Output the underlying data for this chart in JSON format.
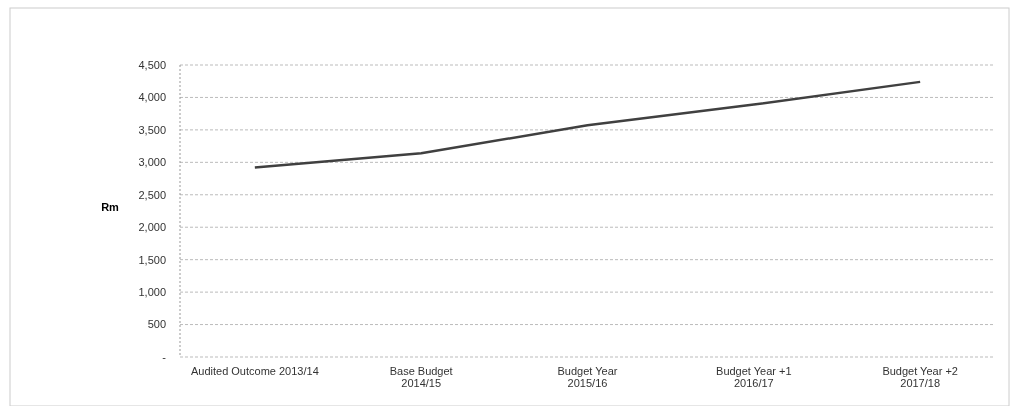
{
  "chart_data": {
    "type": "line",
    "ylabel": "Rm",
    "categories": [
      "Audited Outcome 2013/14",
      "Base Budget\n2014/15",
      "Budget Year\n2015/16",
      "Budget Year +1\n2016/17",
      "Budget Year +2\n2017/18"
    ],
    "series": [
      {
        "color": "#404040",
        "values": [
          2920,
          3140,
          3570,
          3890,
          4240
        ]
      }
    ],
    "ylim": [
      0,
      4500
    ],
    "yticks": [
      {
        "value": 0,
        "label": "-"
      },
      {
        "value": 500,
        "label": "500"
      },
      {
        "value": 1000,
        "label": "1,000"
      },
      {
        "value": 1500,
        "label": "1,500"
      },
      {
        "value": 2000,
        "label": "2,000"
      },
      {
        "value": 2500,
        "label": "2,500"
      },
      {
        "value": 3000,
        "label": "3,000"
      },
      {
        "value": 3500,
        "label": "3,500"
      },
      {
        "value": 4000,
        "label": "4,000"
      },
      {
        "value": 4500,
        "label": "4,500"
      }
    ],
    "grid": "y",
    "marker": "none",
    "line_style": "solid"
  }
}
